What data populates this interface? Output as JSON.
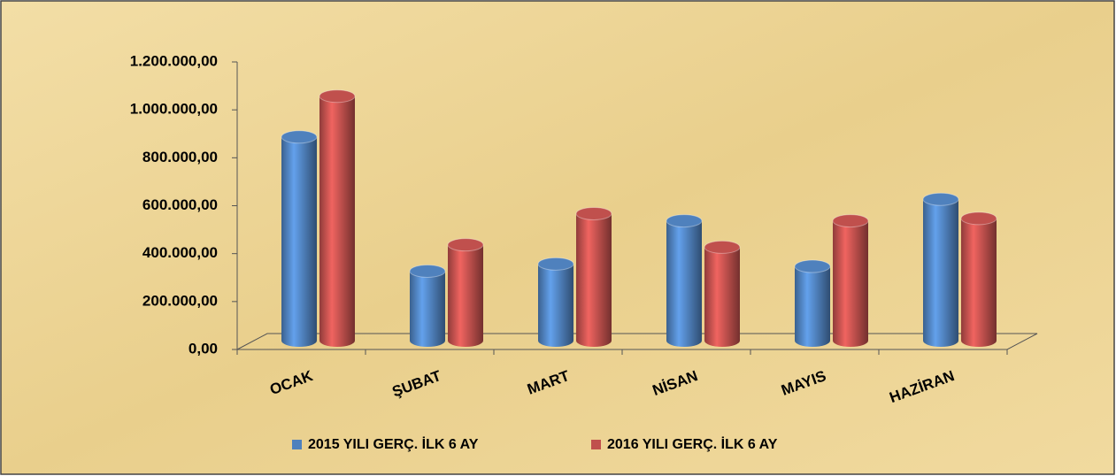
{
  "chart_data": {
    "type": "bar3d",
    "categories": [
      "OCAK",
      "ŞUBAT",
      "MART",
      "NİSAN",
      "MAYIS",
      "HAZİRAN"
    ],
    "series": [
      {
        "name": "2015 YILI GERÇ. İLK 6 AY",
        "color": "#4f81bd",
        "values": [
          850000,
          290000,
          320000,
          500000,
          310000,
          590000
        ]
      },
      {
        "name": "2016 YILI GERÇ. İLK 6 AY",
        "color": "#c0504d",
        "values": [
          1020000,
          400000,
          530000,
          390000,
          500000,
          510000
        ]
      }
    ],
    "ylim": [
      0,
      1200000
    ],
    "yticks": [
      {
        "value": 0,
        "label": "0,00"
      },
      {
        "value": 200000,
        "label": "200.000,00"
      },
      {
        "value": 400000,
        "label": "400.000,00"
      },
      {
        "value": 600000,
        "label": "600.000,00"
      },
      {
        "value": 800000,
        "label": "800.000,00"
      },
      {
        "value": 1000000,
        "label": "1.000.000,00"
      },
      {
        "value": 1200000,
        "label": "1.200.000,00"
      }
    ],
    "grid": false,
    "legend": "bottom"
  }
}
